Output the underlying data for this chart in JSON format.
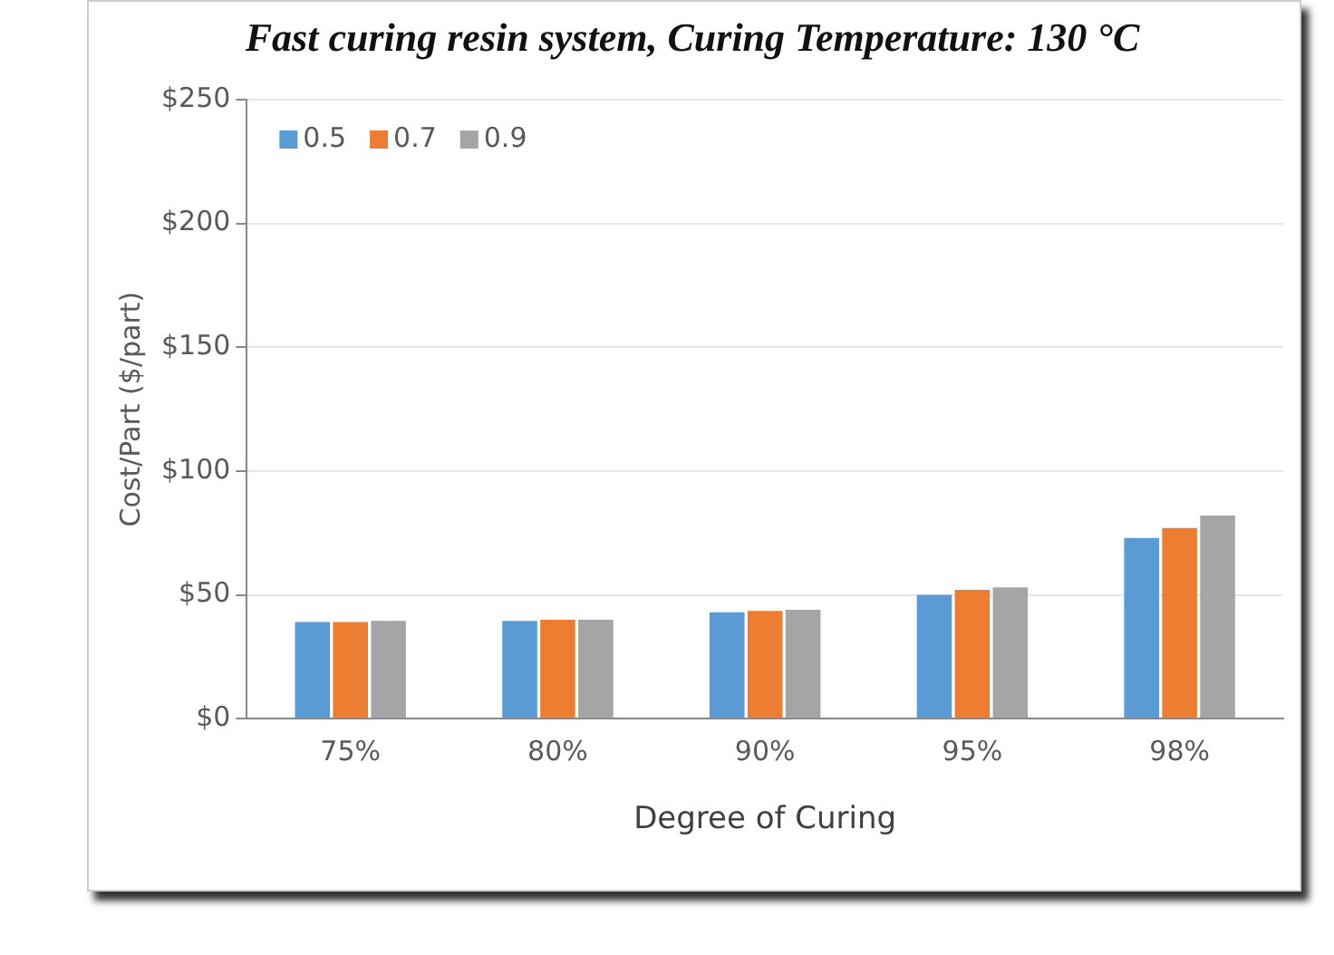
{
  "chart_data": {
    "type": "bar",
    "title": "Fast curing resin system, Curing Temperature: 130 °C",
    "xlabel": "Degree of Curing",
    "ylabel": "Cost/Part ($/part)",
    "categories": [
      "75%",
      "80%",
      "90%",
      "95%",
      "98%"
    ],
    "series": [
      {
        "name": "0.5",
        "color": "#5b9bd5",
        "values": [
          39,
          39.5,
          43,
          50,
          73
        ]
      },
      {
        "name": "0.7",
        "color": "#ed7d31",
        "values": [
          39,
          40,
          43.5,
          52,
          77
        ]
      },
      {
        "name": "0.9",
        "color": "#a5a5a5",
        "values": [
          39.5,
          40,
          44,
          53,
          82
        ]
      }
    ],
    "ylim": [
      0,
      250
    ],
    "yticks": [
      {
        "value": 0,
        "label": "$0"
      },
      {
        "value": 50,
        "label": "$50"
      },
      {
        "value": 100,
        "label": "$100"
      },
      {
        "value": 150,
        "label": "$150"
      },
      {
        "value": 200,
        "label": "$200"
      },
      {
        "value": 250,
        "label": "$250"
      }
    ],
    "grid": "y",
    "legend": "top left"
  }
}
